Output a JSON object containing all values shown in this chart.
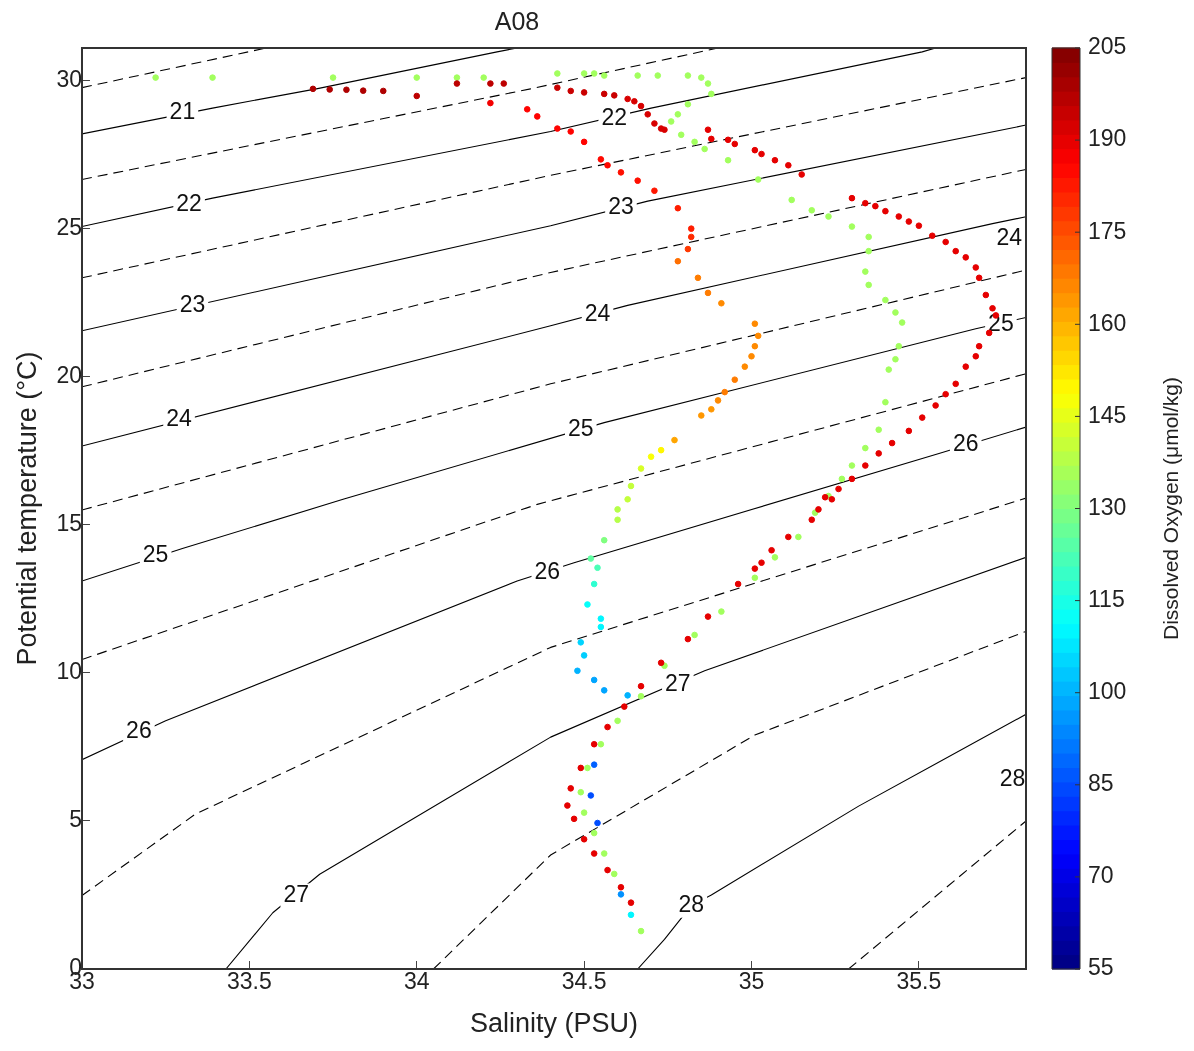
{
  "chart_data": {
    "type": "scatter",
    "title": "A08",
    "xlabel": "Salinity (PSU)",
    "ylabel": "Potential temperature (°C)",
    "clabel": "Dissolved Oxygen (μmol/kg)",
    "xlim": [
      33,
      35.82
    ],
    "ylim": [
      0,
      31.1
    ],
    "xticks": [
      33,
      33.5,
      34,
      34.5,
      35,
      35.5
    ],
    "yticks": [
      0,
      5,
      10,
      15,
      20,
      25,
      30
    ],
    "clim": [
      55,
      205
    ],
    "cticks": [
      55,
      70,
      85,
      100,
      115,
      130,
      145,
      160,
      175,
      190,
      205
    ],
    "annotations": [
      {
        "text": "21",
        "x": 33.3,
        "y": 28.9
      },
      {
        "text": "22",
        "x": 33.32,
        "y": 25.8
      },
      {
        "text": "22",
        "x": 34.59,
        "y": 28.7
      },
      {
        "text": "23",
        "x": 33.33,
        "y": 22.4
      },
      {
        "text": "23",
        "x": 34.61,
        "y": 25.7
      },
      {
        "text": "24",
        "x": 33.29,
        "y": 18.55
      },
      {
        "text": "24",
        "x": 34.54,
        "y": 22.1
      },
      {
        "text": "24",
        "x": 35.77,
        "y": 24.65
      },
      {
        "text": "25",
        "x": 33.22,
        "y": 13.97
      },
      {
        "text": "25",
        "x": 34.49,
        "y": 18.2
      },
      {
        "text": "25",
        "x": 35.745,
        "y": 21.76
      },
      {
        "text": "26",
        "x": 33.17,
        "y": 8.0
      },
      {
        "text": "26",
        "x": 34.39,
        "y": 13.4
      },
      {
        "text": "26",
        "x": 35.64,
        "y": 17.7
      },
      {
        "text": "27",
        "x": 33.64,
        "y": 2.48
      },
      {
        "text": "27",
        "x": 34.78,
        "y": 9.6
      },
      {
        "text": "28",
        "x": 34.82,
        "y": 2.14
      },
      {
        "text": "28",
        "x": 35.78,
        "y": 6.4
      }
    ],
    "series": [
      {
        "type": "line",
        "color": "#000000",
        "line_style": "dashed",
        "x": [
          33,
          33.55
        ],
        "values": [
          29.76,
          31.1
        ]
      },
      {
        "type": "line",
        "color": "#000000",
        "line_style": "solid",
        "x": [
          33,
          33.39,
          33.7,
          34.24,
          34.3
        ],
        "values": [
          28.2,
          29.07,
          29.72,
          30.97,
          31.1
        ]
      },
      {
        "type": "line",
        "color": "#000000",
        "line_style": "dashed",
        "x": [
          33,
          34.34,
          34.9
        ],
        "values": [
          26.66,
          29.72,
          31.1
        ]
      },
      {
        "type": "line",
        "color": "#000000",
        "line_style": "solid",
        "x": [
          33,
          33.39,
          34.4,
          34.7,
          35.51,
          35.55
        ],
        "values": [
          25.07,
          26.03,
          28.28,
          29.07,
          30.97,
          31.1
        ]
      },
      {
        "type": "line",
        "color": "#000000",
        "line_style": "dashed",
        "x": [
          33,
          34.4,
          35.82
        ],
        "values": [
          23.34,
          26.8,
          30.1
        ]
      },
      {
        "type": "line",
        "color": "#000000",
        "line_style": "solid",
        "x": [
          33,
          34.4,
          34.69,
          35.77,
          35.82
        ],
        "values": [
          21.55,
          25.1,
          25.93,
          28.38,
          28.5
        ]
      },
      {
        "type": "line",
        "color": "#000000",
        "line_style": "dashed",
        "x": [
          33,
          34.4,
          35.82
        ],
        "values": [
          19.66,
          23.52,
          27.0
        ]
      },
      {
        "type": "line",
        "color": "#000000",
        "line_style": "solid",
        "x": [
          33,
          34.4,
          34.63,
          35.72,
          35.82
        ],
        "values": [
          17.66,
          21.72,
          22.41,
          25.17,
          25.4
        ]
      },
      {
        "type": "line",
        "color": "#000000",
        "line_style": "dashed",
        "x": [
          33,
          34.4,
          35.82
        ],
        "values": [
          15.5,
          19.76,
          23.6
        ]
      },
      {
        "type": "line",
        "color": "#000000",
        "line_style": "solid",
        "x": [
          33,
          33.3,
          33.78,
          34.56,
          35.67,
          35.82
        ],
        "values": [
          13.1,
          14.2,
          15.86,
          18.45,
          21.62,
          22.0
        ]
      },
      {
        "type": "line",
        "color": "#000000",
        "line_style": "dashed",
        "x": [
          33,
          34.36,
          35.82
        ],
        "values": [
          10.45,
          15.69,
          20.1
        ]
      },
      {
        "type": "line",
        "color": "#000000",
        "line_style": "solid",
        "x": [
          33,
          33.25,
          34.3,
          34.47,
          35.56,
          35.82
        ],
        "values": [
          7.07,
          8.38,
          13.1,
          13.72,
          17.41,
          18.3
        ]
      },
      {
        "type": "line",
        "color": "#000000",
        "line_style": "dashed",
        "x": [
          33,
          33.34,
          34.4,
          35.82
        ],
        "values": [
          2.48,
          5.24,
          10.86,
          15.9
        ]
      },
      {
        "type": "line",
        "color": "#000000",
        "line_style": "solid",
        "x": [
          33.43,
          33.57,
          33.71,
          34.4,
          34.86,
          35.82
        ],
        "values": [
          0,
          1.9,
          3.2,
          7.83,
          10.07,
          13.9
        ]
      },
      {
        "type": "line",
        "color": "#000000",
        "line_style": "dashed",
        "x": [
          34.05,
          34.4,
          35.01,
          35.82
        ],
        "values": [
          0,
          3.85,
          7.9,
          11.4
        ]
      },
      {
        "type": "line",
        "color": "#000000",
        "line_style": "solid",
        "x": [
          34.66,
          34.74,
          34.82,
          34.88,
          35.32,
          35.82
        ],
        "values": [
          0,
          1.0,
          2.14,
          2.5,
          5.5,
          8.6
        ]
      },
      {
        "type": "line",
        "color": "#000000",
        "line_style": "dashed",
        "x": [
          35.29,
          35.82
        ],
        "values": [
          0,
          5.0
        ]
      },
      {
        "marker": "circle",
        "colors": [
          "#af0000",
          "#af0000",
          "#af0000",
          "#af0000",
          "#af0000",
          "#bd0000",
          "#bd0000",
          "#bd0000",
          "#bd0000",
          "#ca0000",
          "#ca0000",
          "#ca0000",
          "#ca0000",
          "#ca0000",
          "#d80000",
          "#d80000",
          "#d80000",
          "#d80000",
          "#d80000",
          "#d80000",
          "#d80000",
          "#e60000",
          "#e60000",
          "#e60000",
          "#e60000",
          "#e60000",
          "#e60000",
          "#e60000",
          "#e60000",
          "#e60000",
          "#e60000",
          "#e60000",
          "#e60000",
          "#e60000",
          "#e60000",
          "#e60000",
          "#e60000",
          "#e60000",
          "#e60000",
          "#e60000",
          "#e60000",
          "#e60000",
          "#e60000",
          "#e60000",
          "#e60000",
          "#e60000",
          "#e60000",
          "#e60000",
          "#e60000",
          "#e60000",
          "#e60000",
          "#e60000",
          "#e60000",
          "#e60000",
          "#e60000",
          "#e60000",
          "#e60000",
          "#e60000",
          "#e60000",
          "#e60000",
          "#e60000",
          "#e60000",
          "#e60000",
          "#e60000",
          "#e60000",
          "#e60000",
          "#e60000",
          "#e60000",
          "#e60000",
          "#e60000",
          "#e60000",
          "#e60000",
          "#e60000",
          "#e60000",
          "#e60000",
          "#e60000",
          "#e60000",
          "#e60000",
          "#e60000",
          "#e60000",
          "#e60000",
          "#e60000",
          "#e60000",
          "#e60000",
          "#e60000"
        ],
        "x": [
          33.69,
          33.74,
          33.79,
          33.84,
          33.9,
          34.0,
          34.12,
          34.22,
          34.26,
          34.42,
          34.46,
          34.5,
          34.56,
          34.59,
          34.63,
          34.65,
          34.67,
          34.69,
          34.71,
          34.73,
          34.74,
          34.87,
          34.88,
          34.93,
          34.95,
          35.01,
          35.03,
          35.07,
          35.11,
          35.15,
          35.3,
          35.34,
          35.37,
          35.4,
          35.44,
          35.47,
          35.5,
          35.54,
          35.58,
          35.61,
          35.64,
          35.67,
          35.68,
          35.7,
          35.72,
          35.73,
          35.71,
          35.68,
          35.67,
          35.64,
          35.61,
          35.58,
          35.55,
          35.51,
          35.47,
          35.42,
          35.38,
          35.34,
          35.3,
          35.26,
          35.22,
          35.2,
          35.24,
          35.18,
          35.11,
          35.06,
          35.03,
          35.01,
          34.96,
          34.87,
          34.81,
          34.73,
          34.67,
          34.62,
          34.57,
          34.53,
          34.49,
          34.46,
          34.45,
          34.47,
          34.5,
          34.53,
          34.57,
          34.61,
          34.64
        ],
        "values": [
          29.72,
          29.7,
          29.69,
          29.66,
          29.65,
          29.48,
          29.9,
          29.9,
          29.9,
          29.76,
          29.65,
          29.6,
          29.55,
          29.5,
          29.38,
          29.3,
          29.14,
          28.86,
          28.55,
          28.38,
          28.34,
          28.34,
          28.03,
          28.0,
          27.86,
          27.65,
          27.52,
          27.31,
          27.14,
          26.83,
          26.03,
          25.86,
          25.76,
          25.59,
          25.41,
          25.24,
          25.1,
          24.76,
          24.55,
          24.24,
          24.03,
          23.69,
          23.34,
          22.76,
          22.31,
          22.07,
          21.48,
          21.03,
          20.69,
          20.34,
          19.76,
          19.41,
          19.03,
          18.62,
          18.17,
          17.76,
          17.41,
          17.0,
          16.55,
          16.21,
          15.93,
          15.52,
          15.86,
          15.17,
          14.59,
          14.14,
          13.72,
          13.52,
          13.0,
          11.9,
          11.14,
          10.34,
          9.55,
          8.86,
          8.17,
          7.59,
          6.79,
          6.1,
          5.52,
          5.07,
          4.38,
          3.9,
          3.34,
          2.76,
          2.24
        ],
        "cvalues": [
          198,
          198,
          198,
          198,
          198,
          196,
          196,
          196,
          196,
          194,
          194,
          194,
          194,
          194,
          192,
          192,
          192,
          192,
          192,
          192,
          192,
          190,
          190,
          190,
          190,
          190,
          190,
          190,
          190,
          190,
          190,
          190,
          190,
          190,
          190,
          190,
          190,
          190,
          190,
          190,
          190,
          190,
          190,
          190,
          190,
          190,
          190,
          190,
          190,
          190,
          190,
          190,
          190,
          190,
          190,
          190,
          190,
          190,
          190,
          190,
          190,
          190,
          190,
          190,
          190,
          190,
          190,
          190,
          190,
          190,
          190,
          190,
          190,
          190,
          190,
          190,
          190,
          190,
          190,
          190,
          190,
          190,
          190,
          190,
          190
        ]
      },
      {
        "marker": "circle",
        "x": [
          33.22,
          33.39,
          33.75,
          34.0,
          34.12,
          34.2,
          34.42,
          34.5,
          34.53,
          34.56,
          34.66,
          34.72,
          34.81,
          34.85,
          34.87,
          34.88,
          34.81,
          34.78,
          34.76,
          34.79,
          34.83,
          34.86,
          34.93,
          35.02,
          35.12,
          35.18,
          35.23,
          35.3,
          35.35,
          35.35,
          35.34,
          35.35,
          35.4,
          35.43,
          35.45,
          35.44,
          35.43,
          35.41,
          35.4,
          35.38,
          35.34,
          35.3,
          35.27,
          35.23,
          35.19,
          35.14,
          35.07,
          35.01,
          34.91,
          34.83,
          34.74,
          34.67,
          34.6,
          34.55,
          34.51,
          34.49,
          34.5,
          34.53,
          34.56,
          34.59
        ],
        "values": [
          30.1,
          30.1,
          30.1,
          30.1,
          30.1,
          30.1,
          30.24,
          30.24,
          30.24,
          30.17,
          30.17,
          30.17,
          30.17,
          30.1,
          29.9,
          29.55,
          29.2,
          28.86,
          28.62,
          28.17,
          27.93,
          27.69,
          27.31,
          26.66,
          25.97,
          25.62,
          25.41,
          25.07,
          24.72,
          24.24,
          23.55,
          23.1,
          22.59,
          22.17,
          21.83,
          21.03,
          20.59,
          20.24,
          19.14,
          18.21,
          17.59,
          17.0,
          16.55,
          15.97,
          15.41,
          14.59,
          13.9,
          13.21,
          12.07,
          11.28,
          10.24,
          9.21,
          8.38,
          7.59,
          6.79,
          5.97,
          5.28,
          4.59,
          3.9,
          3.21
        ],
        "cvalues": [
          135,
          135,
          135,
          135,
          135,
          135,
          135,
          135,
          135,
          135,
          135,
          135,
          135,
          135,
          135,
          135,
          135,
          135,
          135,
          135,
          135,
          135,
          135,
          135,
          135,
          135,
          135,
          135,
          135,
          135,
          135,
          135,
          135,
          135,
          135,
          135,
          135,
          135,
          135,
          135,
          135,
          135,
          135,
          135,
          135,
          135,
          135,
          135,
          135,
          135,
          135,
          135,
          135,
          135,
          135,
          135,
          135,
          135,
          135,
          135
        ]
      },
      {
        "marker": "circle",
        "colors": [
          "#f30000",
          "#ff0200",
          "#ff0200",
          "#ff0200",
          "#ff0200",
          "#ff0200",
          "#ff0900",
          "#ff0900",
          "#ff0f00",
          "#ff0f00",
          "#ff1600",
          "#ff1d00",
          "#ff1d00",
          "#ff2b00",
          "#ff3800",
          "#ff6f00",
          "#ff7c00",
          "#ff7c00",
          "#ff8a00",
          "#ff8a00",
          "#ff8a00",
          "#ff8a00",
          "#ff8a00",
          "#ff8a00",
          "#ff7c00",
          "#ff7c00",
          "#ff8a00",
          "#ff9700",
          "#ff9700",
          "#ffa500",
          "#fff700",
          "#faff05",
          "#d8ff27",
          "#c4ff3b",
          "#b6ff49",
          "#c4ff3b",
          "#b6ff49",
          "#80ff80",
          "#5effa1",
          "#49ffb6",
          "#2effd1",
          "#05fffa",
          "#00f7ff",
          "#00f7ff",
          "#00d4ff",
          "#00ceff",
          "#00b3ff",
          "#00a5ff",
          "#00a5ff",
          "#00b3ff",
          "#0061ff",
          "#004dff",
          "#004dff",
          "#0091ff",
          "#00f7ff",
          "#a1ff5e"
        ],
        "x": [
          34.22,
          34.33,
          34.36,
          34.42,
          34.46,
          34.5,
          34.55,
          34.57,
          34.61,
          34.66,
          34.71,
          34.78,
          34.82,
          34.82,
          34.81,
          34.78,
          34.84,
          34.87,
          34.91,
          35.01,
          35.02,
          35.01,
          35.0,
          34.98,
          34.95,
          34.92,
          34.9,
          34.88,
          34.85,
          34.77,
          34.73,
          34.7,
          34.67,
          34.64,
          34.6,
          34.63,
          34.6,
          34.56,
          34.52,
          34.54,
          34.53,
          34.51,
          34.55,
          34.55,
          34.49,
          34.5,
          34.48,
          34.53,
          34.56,
          34.63,
          34.53,
          34.52,
          34.54,
          34.61,
          34.64,
          34.67
        ],
        "values": [
          29.24,
          29.03,
          28.79,
          28.38,
          28.28,
          27.93,
          27.34,
          27.14,
          26.9,
          26.62,
          26.28,
          25.69,
          25.0,
          24.72,
          24.31,
          23.9,
          23.34,
          22.83,
          22.48,
          21.79,
          21.38,
          21.03,
          20.69,
          20.34,
          19.9,
          19.48,
          19.2,
          18.9,
          18.69,
          17.86,
          17.52,
          17.3,
          16.9,
          16.31,
          15.52,
          15.86,
          15.17,
          14.48,
          13.86,
          13.55,
          13.0,
          12.31,
          11.83,
          11.55,
          11.03,
          10.59,
          10.07,
          9.76,
          9.41,
          9.24,
          6.9,
          5.86,
          4.93,
          2.52,
          1.83,
          1.28
        ],
        "cvalues": [
          188,
          186,
          186,
          186,
          186,
          186,
          185,
          185,
          184,
          184,
          183,
          182,
          182,
          180,
          178,
          170,
          168,
          168,
          166,
          166,
          166,
          166,
          166,
          166,
          168,
          168,
          166,
          164,
          164,
          162,
          150,
          148,
          143,
          140,
          138,
          140,
          138,
          130,
          125,
          122,
          118,
          112,
          110,
          110,
          105,
          104,
          100,
          98,
          98,
          100,
          88,
          85,
          85,
          95,
          110,
          135
        ]
      }
    ]
  }
}
